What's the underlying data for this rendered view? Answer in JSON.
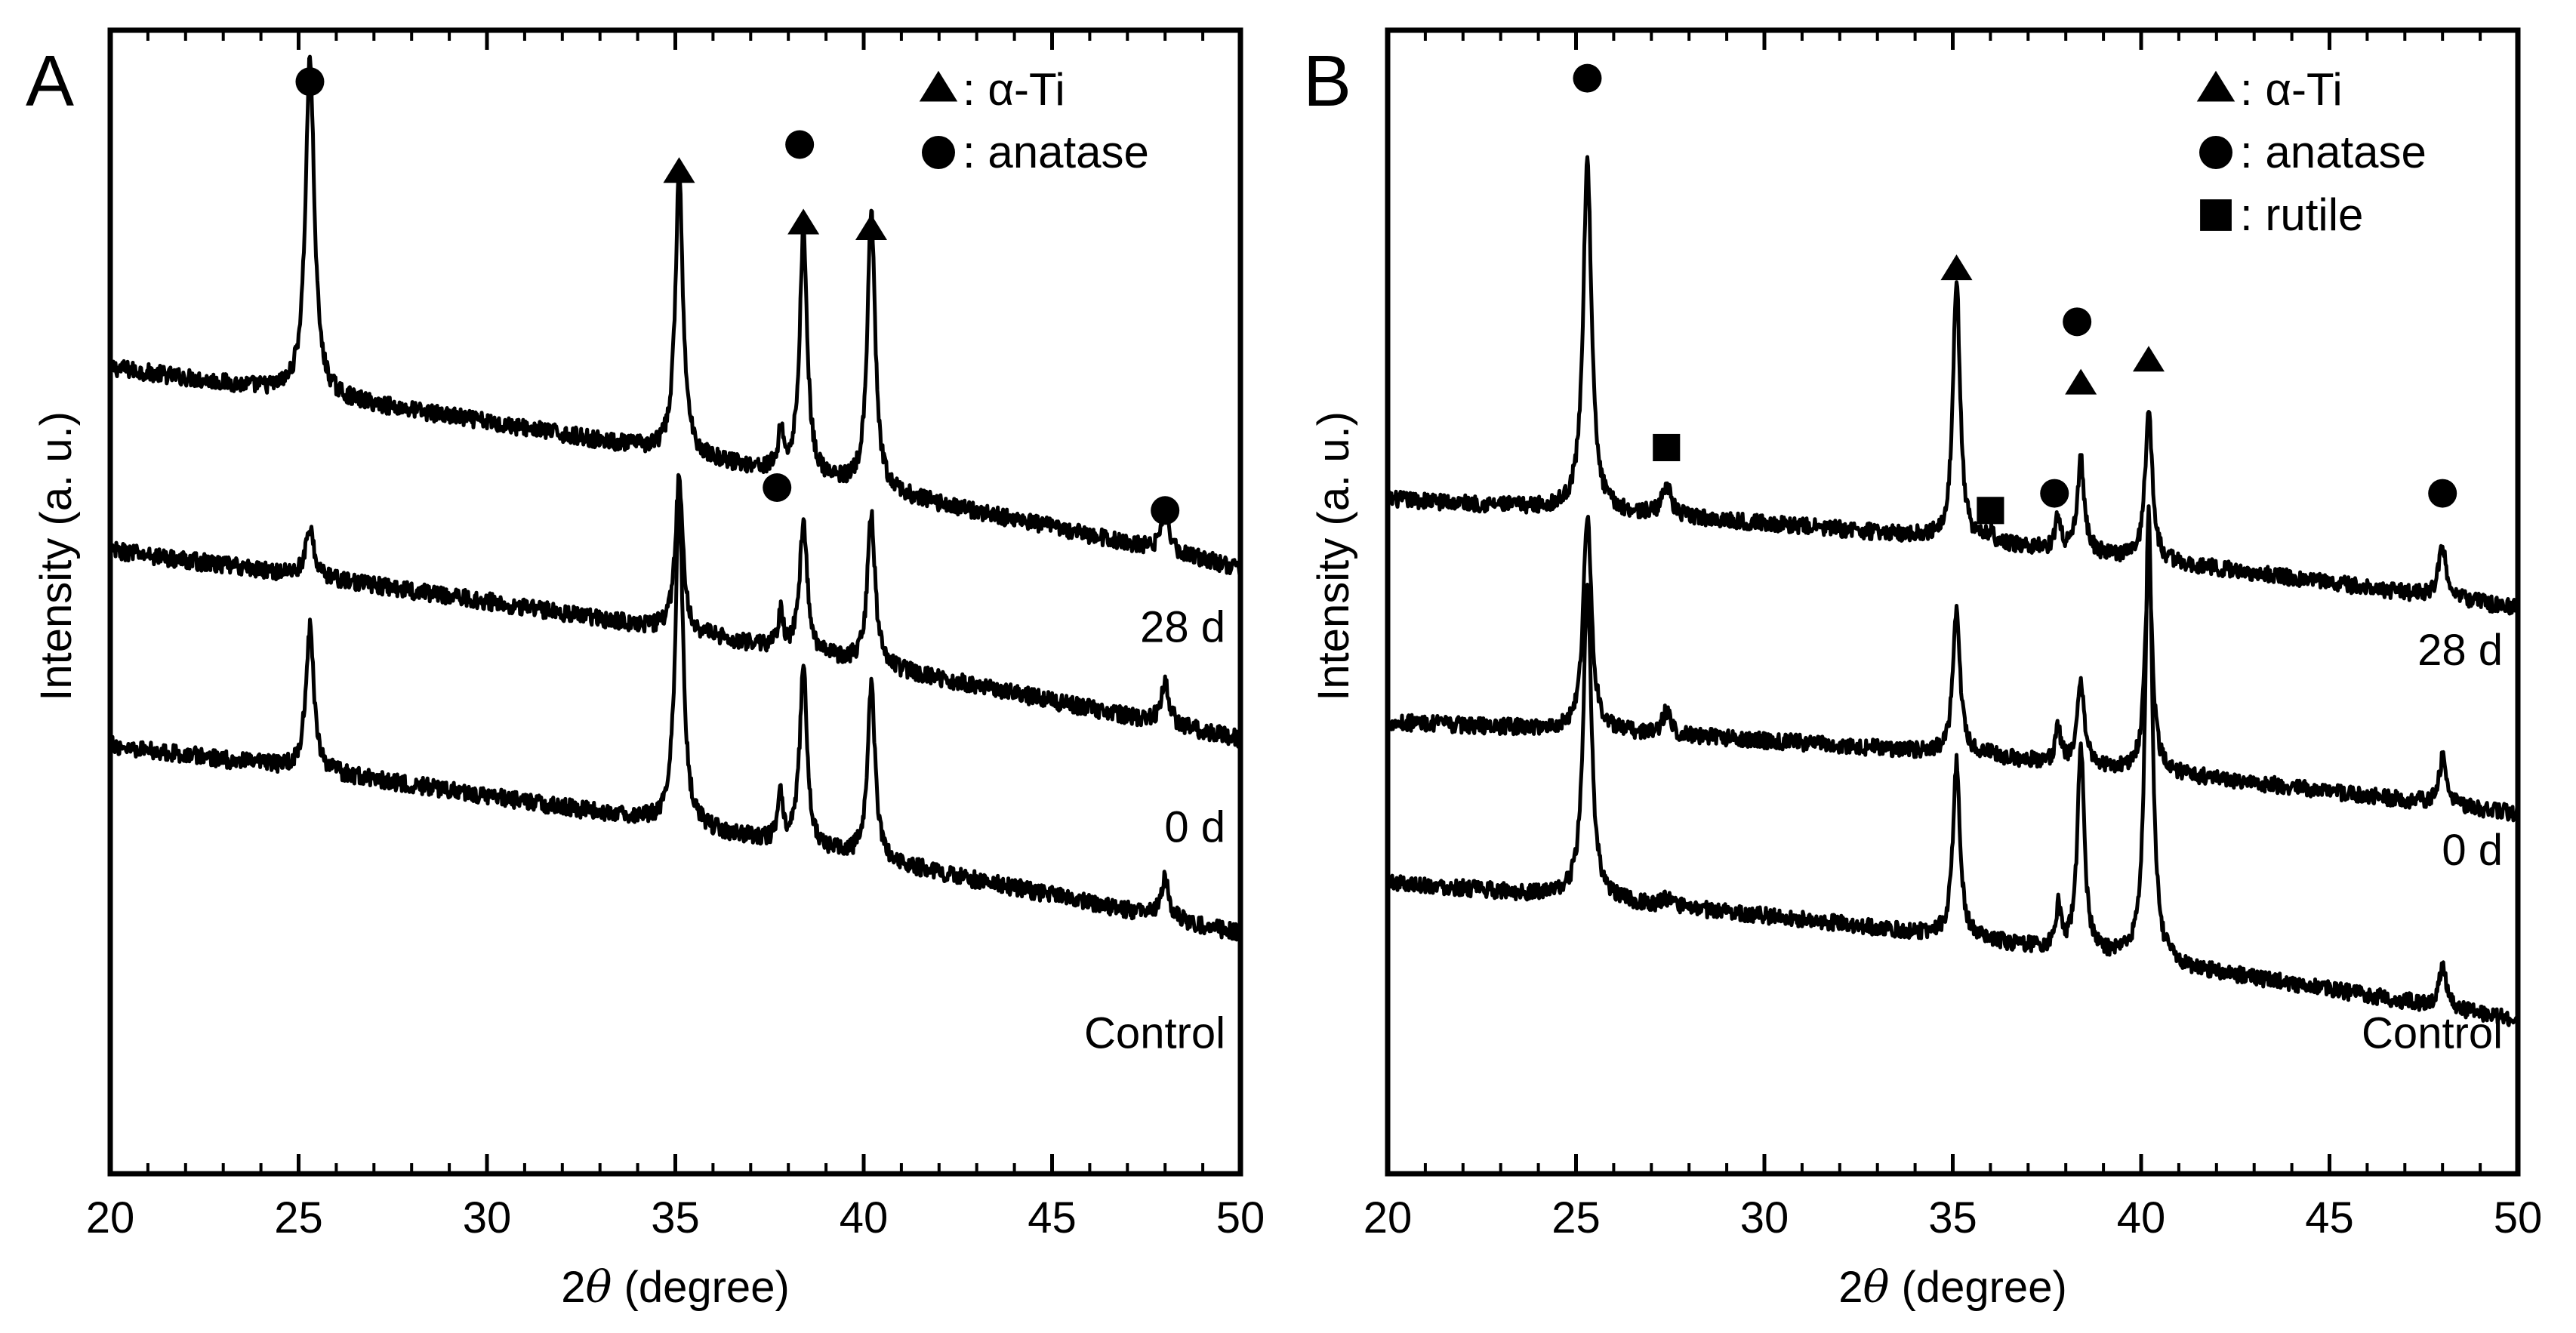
{
  "figure": {
    "x_label_prefix": "2",
    "x_label_theta": "θ",
    "x_label_suffix": " (degree)",
    "y_label": "Intensity (a. u.)"
  },
  "chart_data": [
    {
      "type": "line",
      "panel_label": "A",
      "xlabel": "2θ (degree)",
      "ylabel": "Intensity (a. u.)",
      "xlim": [
        20,
        50
      ],
      "ylim": [
        0,
        100
      ],
      "xticks": [
        20,
        25,
        30,
        35,
        40,
        45,
        50
      ],
      "xtick_labels": [
        "20",
        "25",
        "30",
        "35",
        "40",
        "45",
        "50"
      ],
      "y_axis_ticks": false,
      "legend_position": "top-right",
      "legend": [
        {
          "marker": "triangle",
          "label": ": α-Ti"
        },
        {
          "marker": "circle",
          "label": ": anatase"
        }
      ],
      "series": [
        {
          "name": "28 d",
          "start": 70.5,
          "end": 53,
          "noise": 0.75,
          "peaks": [
            [
              25.3,
              29.5,
              0.14
            ],
            [
              35.1,
              24.5,
              0.12
            ],
            [
              37.8,
              3.5,
              0.08
            ],
            [
              38.4,
              21.5,
              0.12
            ],
            [
              40.2,
              24.5,
              0.12
            ],
            [
              48.0,
              3.8,
              0.12
            ]
          ]
        },
        {
          "name": "0 d",
          "start": 54.5,
          "end": 38,
          "noise": 0.75,
          "peaks": [
            [
              25.3,
              4.0,
              0.14
            ],
            [
              35.1,
              13.5,
              0.12
            ],
            [
              37.8,
              3.0,
              0.08
            ],
            [
              38.4,
              11.5,
              0.12
            ],
            [
              40.2,
              13.5,
              0.12
            ],
            [
              48.0,
              4.0,
              0.12
            ]
          ]
        },
        {
          "name": "Control",
          "start": 37.5,
          "end": 21,
          "noise": 0.75,
          "peaks": [
            [
              25.3,
              12.5,
              0.13
            ],
            [
              35.1,
              29.0,
              0.12
            ],
            [
              37.8,
              4.0,
              0.08
            ],
            [
              38.4,
              15.5,
              0.12
            ],
            [
              40.2,
              15.5,
              0.12
            ],
            [
              48.0,
              3.5,
              0.12
            ]
          ]
        }
      ],
      "series_labels": [
        {
          "text": "28 d",
          "x": 49.6,
          "y": 46.5
        },
        {
          "text": "0 d",
          "x": 49.6,
          "y": 29.0
        },
        {
          "text": "Control",
          "x": 49.6,
          "y": 11.0
        }
      ],
      "annotations": [
        {
          "marker": "circle",
          "x": 25.3,
          "y": 95.5
        },
        {
          "marker": "triangle",
          "x": 35.1,
          "y": 87.5
        },
        {
          "marker": "circle",
          "x": 38.3,
          "y": 90.0
        },
        {
          "marker": "triangle",
          "x": 38.4,
          "y": 83.0
        },
        {
          "marker": "triangle",
          "x": 40.2,
          "y": 82.5
        },
        {
          "marker": "circle",
          "x": 37.7,
          "y": 60.0
        },
        {
          "marker": "circle",
          "x": 48.0,
          "y": 58.0
        }
      ]
    },
    {
      "type": "line",
      "panel_label": "B",
      "xlabel": "2θ (degree)",
      "ylabel": "Intensity (a. u.)",
      "xlim": [
        20,
        50
      ],
      "ylim": [
        0,
        100
      ],
      "xticks": [
        20,
        25,
        30,
        35,
        40,
        45,
        50
      ],
      "xtick_labels": [
        "20",
        "25",
        "30",
        "35",
        "40",
        "45",
        "50"
      ],
      "y_axis_ticks": false,
      "legend_position": "top-right",
      "legend": [
        {
          "marker": "triangle",
          "label": ": α-Ti"
        },
        {
          "marker": "circle",
          "label": ": anatase"
        },
        {
          "marker": "square",
          "label": ": rutile"
        }
      ],
      "series": [
        {
          "name": "28 d",
          "start": 59.0,
          "end": 49.5,
          "noise": 0.7,
          "peaks": [
            [
              25.3,
              31.0,
              0.13
            ],
            [
              27.4,
              2.8,
              0.13
            ],
            [
              35.1,
              23.0,
              0.11
            ],
            [
              36.0,
              0.8,
              0.1
            ],
            [
              37.8,
              3.0,
              0.08
            ],
            [
              38.4,
              8.0,
              0.11
            ],
            [
              40.2,
              13.5,
              0.11
            ],
            [
              48.0,
              4.5,
              0.12
            ]
          ]
        },
        {
          "name": "0 d",
          "start": 39.5,
          "end": 31.5,
          "noise": 0.7,
          "peaks": [
            [
              25.3,
              19.0,
              0.13
            ],
            [
              27.4,
              2.0,
              0.13
            ],
            [
              35.1,
              13.0,
              0.11
            ],
            [
              36.0,
              0.5,
              0.1
            ],
            [
              37.8,
              3.0,
              0.08
            ],
            [
              38.4,
              7.5,
              0.11
            ],
            [
              40.2,
              19.0,
              0.11
            ],
            [
              48.0,
              4.0,
              0.12
            ]
          ]
        },
        {
          "name": "Control",
          "start": 25.5,
          "end": 13.5,
          "noise": 0.7,
          "peaks": [
            [
              25.3,
              27.0,
              0.13
            ],
            [
              27.4,
              0.6,
              0.13
            ],
            [
              35.1,
              15.5,
              0.11
            ],
            [
              37.8,
              3.5,
              0.08
            ],
            [
              38.4,
              18.0,
              0.11
            ],
            [
              40.2,
              40.0,
              0.11
            ],
            [
              48.0,
              3.5,
              0.12
            ]
          ]
        }
      ],
      "series_labels": [
        {
          "text": "28 d",
          "x": 49.6,
          "y": 44.5
        },
        {
          "text": "0 d",
          "x": 49.6,
          "y": 27.0
        },
        {
          "text": "Control",
          "x": 49.6,
          "y": 11.0
        }
      ],
      "annotations": [
        {
          "marker": "circle",
          "x": 25.3,
          "y": 95.8
        },
        {
          "marker": "square",
          "x": 27.4,
          "y": 63.5
        },
        {
          "marker": "triangle",
          "x": 35.1,
          "y": 79.0
        },
        {
          "marker": "square",
          "x": 36.0,
          "y": 58.0
        },
        {
          "marker": "circle",
          "x": 37.7,
          "y": 59.5
        },
        {
          "marker": "circle",
          "x": 38.3,
          "y": 74.5
        },
        {
          "marker": "triangle",
          "x": 38.4,
          "y": 69.0
        },
        {
          "marker": "triangle",
          "x": 40.2,
          "y": 71.0
        },
        {
          "marker": "circle",
          "x": 48.0,
          "y": 59.5
        }
      ]
    }
  ]
}
